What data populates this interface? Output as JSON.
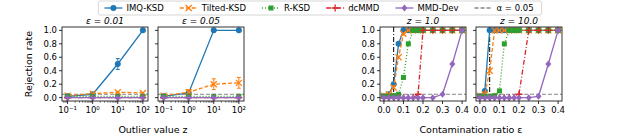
{
  "chart_data": [
    {
      "type": "line",
      "title": "ε = 0.01",
      "x_label": "Outlier value z",
      "y_label": "Rejection rate",
      "legend": "top",
      "log": "x",
      "x": [
        0.1,
        1,
        10,
        100
      ],
      "xlim": [
        0.06,
        160
      ],
      "xticks": [
        {
          "value": 0.1,
          "label": "10⁻¹"
        },
        {
          "value": 1,
          "label": "10⁰"
        },
        {
          "value": 10,
          "label": "10¹"
        },
        {
          "value": 100,
          "label": "10²"
        }
      ],
      "ylim": [
        -0.05,
        1.05
      ],
      "yticks": [
        {
          "value": 0,
          "label": "0.0"
        },
        {
          "value": 0.2,
          "label": "0.2"
        },
        {
          "value": 0.4,
          "label": "0.4"
        },
        {
          "value": 0.6,
          "label": "0.6"
        },
        {
          "value": 0.8,
          "label": "0.8"
        },
        {
          "value": 1,
          "label": "1.0"
        }
      ],
      "tick_labels": true,
      "series": [
        {
          "name": "IMQ-KSD",
          "color": "#1f77b4",
          "marker": "circle",
          "line_style": "solid",
          "values": [
            0.02,
            0.05,
            0.5,
            1.0
          ],
          "errors": [
            null,
            null,
            0.08,
            null
          ]
        },
        {
          "name": "Tilted-KSD",
          "color": "#ff7f0e",
          "marker": "x",
          "line_style": "dashed",
          "values": [
            0.03,
            0.06,
            0.08,
            0.07
          ],
          "errors": [
            null,
            null,
            null,
            null
          ]
        },
        {
          "name": "R-KSD",
          "color": "#2ca02c",
          "marker": "square",
          "line_style": "dotted",
          "values": [
            0.02,
            0.02,
            0.02,
            0.02
          ],
          "errors": [
            null,
            null,
            null,
            null
          ]
        },
        {
          "name": "dcMMD",
          "color": "#d62728",
          "marker": "plus",
          "line_style": "dashdot",
          "values": [
            0.0,
            0.0,
            0.0,
            0.0
          ],
          "errors": [
            null,
            null,
            null,
            null
          ]
        },
        {
          "name": "MMD-Dev",
          "color": "#9467bd",
          "marker": "diamond",
          "line_style": "solid",
          "values": [
            0.0,
            0.0,
            0.0,
            0.0
          ],
          "errors": [
            null,
            null,
            null,
            null
          ]
        }
      ],
      "reference_line": {
        "name": "α = 0.05",
        "value": 0.05,
        "color": "#888888",
        "line_style": "dashed"
      }
    },
    {
      "type": "line",
      "title": "ε = 0.05",
      "log": "x",
      "x": [
        0.1,
        1,
        10,
        100
      ],
      "xlim": [
        0.06,
        160
      ],
      "xticks": [
        {
          "value": 0.1,
          "label": "10⁻¹"
        },
        {
          "value": 1,
          "label": "10⁰"
        },
        {
          "value": 10,
          "label": "10¹"
        },
        {
          "value": 100,
          "label": "10²"
        }
      ],
      "ylim": [
        -0.05,
        1.05
      ],
      "yticks": [
        0,
        0.2,
        0.4,
        0.6,
        0.8,
        1
      ],
      "tick_labels": "x",
      "series": [
        {
          "name": "IMQ-KSD",
          "color": "#1f77b4",
          "marker": "circle",
          "line_style": "solid",
          "values": [
            0.02,
            0.07,
            1.0,
            1.0
          ],
          "errors": [
            null,
            null,
            null,
            null
          ]
        },
        {
          "name": "Tilted-KSD",
          "color": "#ff7f0e",
          "marker": "x",
          "line_style": "dashed",
          "values": [
            0.03,
            0.08,
            0.2,
            0.22
          ],
          "errors": [
            null,
            0.04,
            0.08,
            0.08
          ]
        },
        {
          "name": "R-KSD",
          "color": "#2ca02c",
          "marker": "square",
          "line_style": "dotted",
          "values": [
            0.02,
            0.02,
            0.02,
            0.02
          ],
          "errors": [
            null,
            null,
            null,
            null
          ]
        },
        {
          "name": "dcMMD",
          "color": "#d62728",
          "marker": "plus",
          "line_style": "dashdot",
          "values": [
            0.0,
            0.0,
            0.0,
            0.0
          ],
          "errors": [
            null,
            null,
            null,
            null
          ]
        },
        {
          "name": "MMD-Dev",
          "color": "#9467bd",
          "marker": "diamond",
          "line_style": "solid",
          "values": [
            0.0,
            0.0,
            0.0,
            0.0
          ],
          "errors": [
            null,
            null,
            null,
            null
          ]
        }
      ],
      "reference_line": {
        "value": 0.05,
        "color": "#888888",
        "line_style": "dashed"
      }
    },
    {
      "type": "line",
      "title": "z = 1.0",
      "x_label": "Contamination ratio ε",
      "x": [
        0,
        0.025,
        0.05,
        0.075,
        0.1,
        0.125,
        0.15,
        0.175,
        0.2,
        0.25,
        0.3,
        0.35,
        0.4
      ],
      "xlim": [
        -0.02,
        0.42
      ],
      "xticks": [
        {
          "value": 0,
          "label": "0.0"
        },
        {
          "value": 0.1,
          "label": "0.1"
        },
        {
          "value": 0.2,
          "label": "0.2"
        },
        {
          "value": 0.3,
          "label": "0.3"
        },
        {
          "value": 0.4,
          "label": "0.4"
        }
      ],
      "ylim": [
        -0.05,
        1.05
      ],
      "yticks": [
        {
          "value": 0,
          "label": "0.0"
        },
        {
          "value": 0.2,
          "label": "0.2"
        },
        {
          "value": 0.4,
          "label": "0.4"
        },
        {
          "value": 0.6,
          "label": "0.6"
        },
        {
          "value": 0.8,
          "label": "0.8"
        },
        {
          "value": 1,
          "label": "1.0"
        }
      ],
      "tick_labels": true,
      "series": [
        {
          "name": "IMQ-KSD",
          "color": "#1f77b4",
          "marker": "circle",
          "line_style": "solid",
          "values": [
            0.02,
            0.05,
            0.2,
            0.8,
            1,
            1,
            1,
            1,
            1,
            1,
            1,
            1,
            1
          ]
        },
        {
          "name": "Tilted-KSD",
          "color": "#ff7f0e",
          "marker": "x",
          "line_style": "dashed",
          "values": [
            0.03,
            0.05,
            0.15,
            0.6,
            0.95,
            1,
            1,
            1,
            1,
            1,
            1,
            1,
            1
          ]
        },
        {
          "name": "R-KSD",
          "color": "#2ca02c",
          "marker": "square",
          "line_style": "dotted",
          "values": [
            0.02,
            0.02,
            0.03,
            0.05,
            0.3,
            0.8,
            1,
            1,
            1,
            1,
            1,
            1,
            1
          ]
        },
        {
          "name": "dcMMD",
          "color": "#d62728",
          "marker": "plus",
          "line_style": "dashdot",
          "values": [
            0,
            0,
            0,
            0,
            0,
            0,
            0,
            0.05,
            1,
            1,
            1,
            1,
            1
          ]
        },
        {
          "name": "MMD-Dev",
          "color": "#9467bd",
          "marker": "diamond",
          "line_style": "solid",
          "values": [
            0,
            0,
            0,
            0,
            0,
            0,
            0,
            0,
            0,
            0,
            0.05,
            0.5,
            1
          ]
        }
      ],
      "reference_line": {
        "value": 0.05,
        "color": "#888888",
        "line_style": "dashed"
      },
      "vline": 0.05
    },
    {
      "type": "line",
      "title": "z = 10.0",
      "x": [
        0,
        0.025,
        0.05,
        0.075,
        0.1,
        0.125,
        0.15,
        0.175,
        0.2,
        0.25,
        0.3,
        0.35,
        0.4
      ],
      "xlim": [
        -0.02,
        0.42
      ],
      "xticks": [
        {
          "value": 0,
          "label": "0.0"
        },
        {
          "value": 0.1,
          "label": "0.1"
        },
        {
          "value": 0.2,
          "label": "0.2"
        },
        {
          "value": 0.3,
          "label": "0.3"
        },
        {
          "value": 0.4,
          "label": "0.4"
        }
      ],
      "ylim": [
        -0.05,
        1.05
      ],
      "yticks": [
        0,
        0.2,
        0.4,
        0.6,
        0.8,
        1
      ],
      "tick_labels": "x",
      "series": [
        {
          "name": "IMQ-KSD",
          "color": "#1f77b4",
          "marker": "circle",
          "line_style": "solid",
          "values": [
            0.02,
            0.1,
            1,
            1,
            1,
            1,
            1,
            1,
            1,
            1,
            1,
            1,
            1
          ]
        },
        {
          "name": "Tilted-KSD",
          "color": "#ff7f0e",
          "marker": "x",
          "line_style": "dashed",
          "values": [
            0.03,
            0.05,
            0.4,
            1,
            1,
            1,
            1,
            1,
            1,
            1,
            1,
            1,
            1
          ]
        },
        {
          "name": "R-KSD",
          "color": "#2ca02c",
          "marker": "square",
          "line_style": "dotted",
          "values": [
            0.02,
            0.02,
            0.02,
            0.03,
            0.1,
            0.8,
            1,
            1,
            1,
            1,
            1,
            1,
            1
          ]
        },
        {
          "name": "dcMMD",
          "color": "#d62728",
          "marker": "plus",
          "line_style": "dashdot",
          "values": [
            0,
            0,
            0,
            0,
            0,
            0,
            0,
            0,
            0.05,
            1,
            1,
            1,
            1
          ]
        },
        {
          "name": "MMD-Dev",
          "color": "#9467bd",
          "marker": "diamond",
          "line_style": "solid",
          "values": [
            0,
            0,
            0,
            0,
            0,
            0,
            0,
            0,
            0,
            0,
            0.02,
            0.5,
            1
          ]
        }
      ],
      "reference_line": {
        "value": 0.05,
        "color": "#888888",
        "line_style": "dashed"
      },
      "vline": 0.05
    }
  ]
}
